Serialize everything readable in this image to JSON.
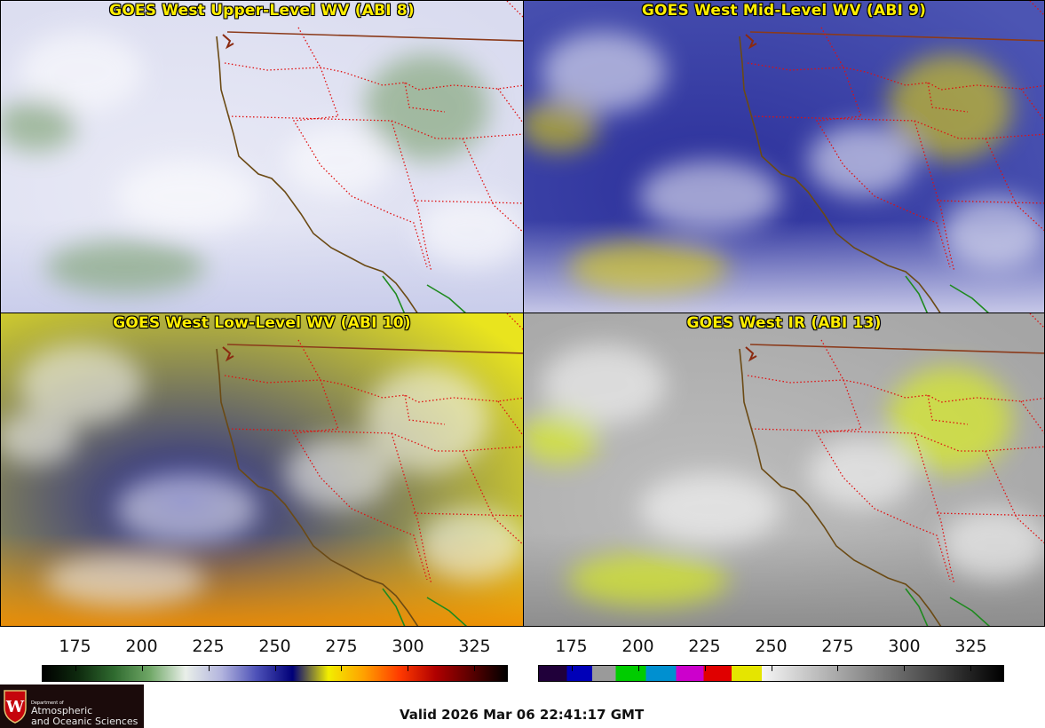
{
  "panels": [
    {
      "title": "GOES West Upper-Level WV (ABI 8)",
      "base": "#d9dbef",
      "ocean_tint": "#e9eaf6",
      "edge_tint": "#c7cbea",
      "accent": "#6f9a5e"
    },
    {
      "title": "GOES West Mid-Level WV (ABI 9)",
      "base": "#4c55b3",
      "ocean_tint": "#2b2f9a",
      "edge_tint": "#d6d6ee",
      "accent": "#f1e100"
    },
    {
      "title": "GOES West Low-Level WV (ABI 10)",
      "base": "#e9e41e",
      "ocean_tint": "#1f2390",
      "edge_tint": "#f08a00",
      "accent": "#ffffff"
    },
    {
      "title": "GOES West IR (ABI 13)",
      "base": "#a5a5a5",
      "ocean_tint": "#bdbdbd",
      "edge_tint": "#8a8a8a",
      "accent": "#e6ff00"
    }
  ],
  "colorbars": [
    {
      "name": "wv-colorbar",
      "ticks": [
        "175",
        "200",
        "225",
        "250",
        "275",
        "300",
        "325"
      ],
      "stops": [
        "#000000",
        "#0e2a0e",
        "#2f6a2f",
        "#6fa766",
        "#e9efe9",
        "#b3b5de",
        "#4c50b7",
        "#000078",
        "#f2ee00",
        "#ffa000",
        "#ff3a00",
        "#b00000",
        "#5a0000",
        "#000000"
      ]
    },
    {
      "name": "ir-colorbar",
      "ticks": [
        "175",
        "200",
        "225",
        "250",
        "275",
        "300",
        "325"
      ],
      "segments": [
        {
          "from": 0.0,
          "to": 0.06,
          "color": "#20003a"
        },
        {
          "from": 0.06,
          "to": 0.115,
          "color": "#0000b8"
        },
        {
          "from": 0.115,
          "to": 0.165,
          "color": "#9a9a9a"
        },
        {
          "from": 0.165,
          "to": 0.23,
          "color": "#00cc00"
        },
        {
          "from": 0.23,
          "to": 0.295,
          "color": "#0090d0"
        },
        {
          "from": 0.295,
          "to": 0.355,
          "color": "#cc00cc"
        },
        {
          "from": 0.355,
          "to": 0.415,
          "color": "#e00000"
        },
        {
          "from": 0.415,
          "to": 0.48,
          "color": "#e5e500"
        },
        {
          "from": 0.48,
          "to": 1.0,
          "gradient": [
            "#f5f5f5",
            "#000000"
          ]
        }
      ]
    }
  ],
  "logo": {
    "dept": "Department of",
    "line1": "Atmospheric",
    "line2": "and Oceanic Sciences"
  },
  "valid_text": "Valid 2026 Mar 06 22:41:17 GMT"
}
